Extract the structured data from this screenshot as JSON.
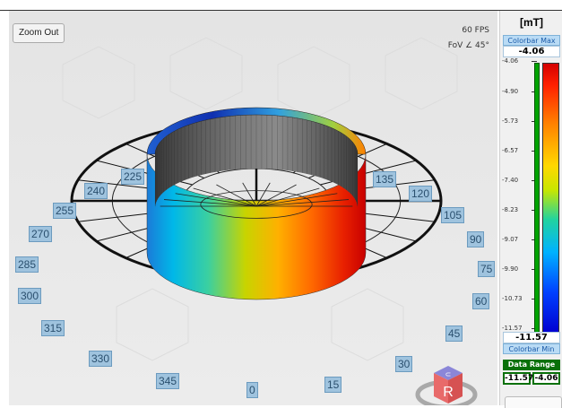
{
  "toolbar": {
    "zoom_out_label": "Zoom Out"
  },
  "hud": {
    "fps": "60 FPS",
    "fov": "FoV ∠ 45°"
  },
  "angles": [
    "0",
    "15",
    "30",
    "45",
    "60",
    "75",
    "90",
    "105",
    "120",
    "135",
    "225",
    "240",
    "255",
    "270",
    "285",
    "300",
    "315",
    "330",
    "345"
  ],
  "axis_cube": {
    "label": "R",
    "top_label": "⊂"
  },
  "colorbar": {
    "unit": "[mT]",
    "max_caption": "Colorbar Max",
    "max_value": "-4.06",
    "min_caption": "Colorbar Min",
    "min_value": "-11.57",
    "ticks": [
      "-4.06",
      "-4.90",
      "-5.73",
      "-6.57",
      "-7.40",
      "-8.23",
      "-9.07",
      "-9.90",
      "-10.73",
      "-11.57"
    ]
  },
  "data_range": {
    "caption": "Data Range",
    "min": "-11.57",
    "max": "-4.06"
  },
  "colors": {
    "label_bg": "#9fc3de",
    "range_green": "#087008",
    "caption_blue": "#b9dbf5"
  }
}
